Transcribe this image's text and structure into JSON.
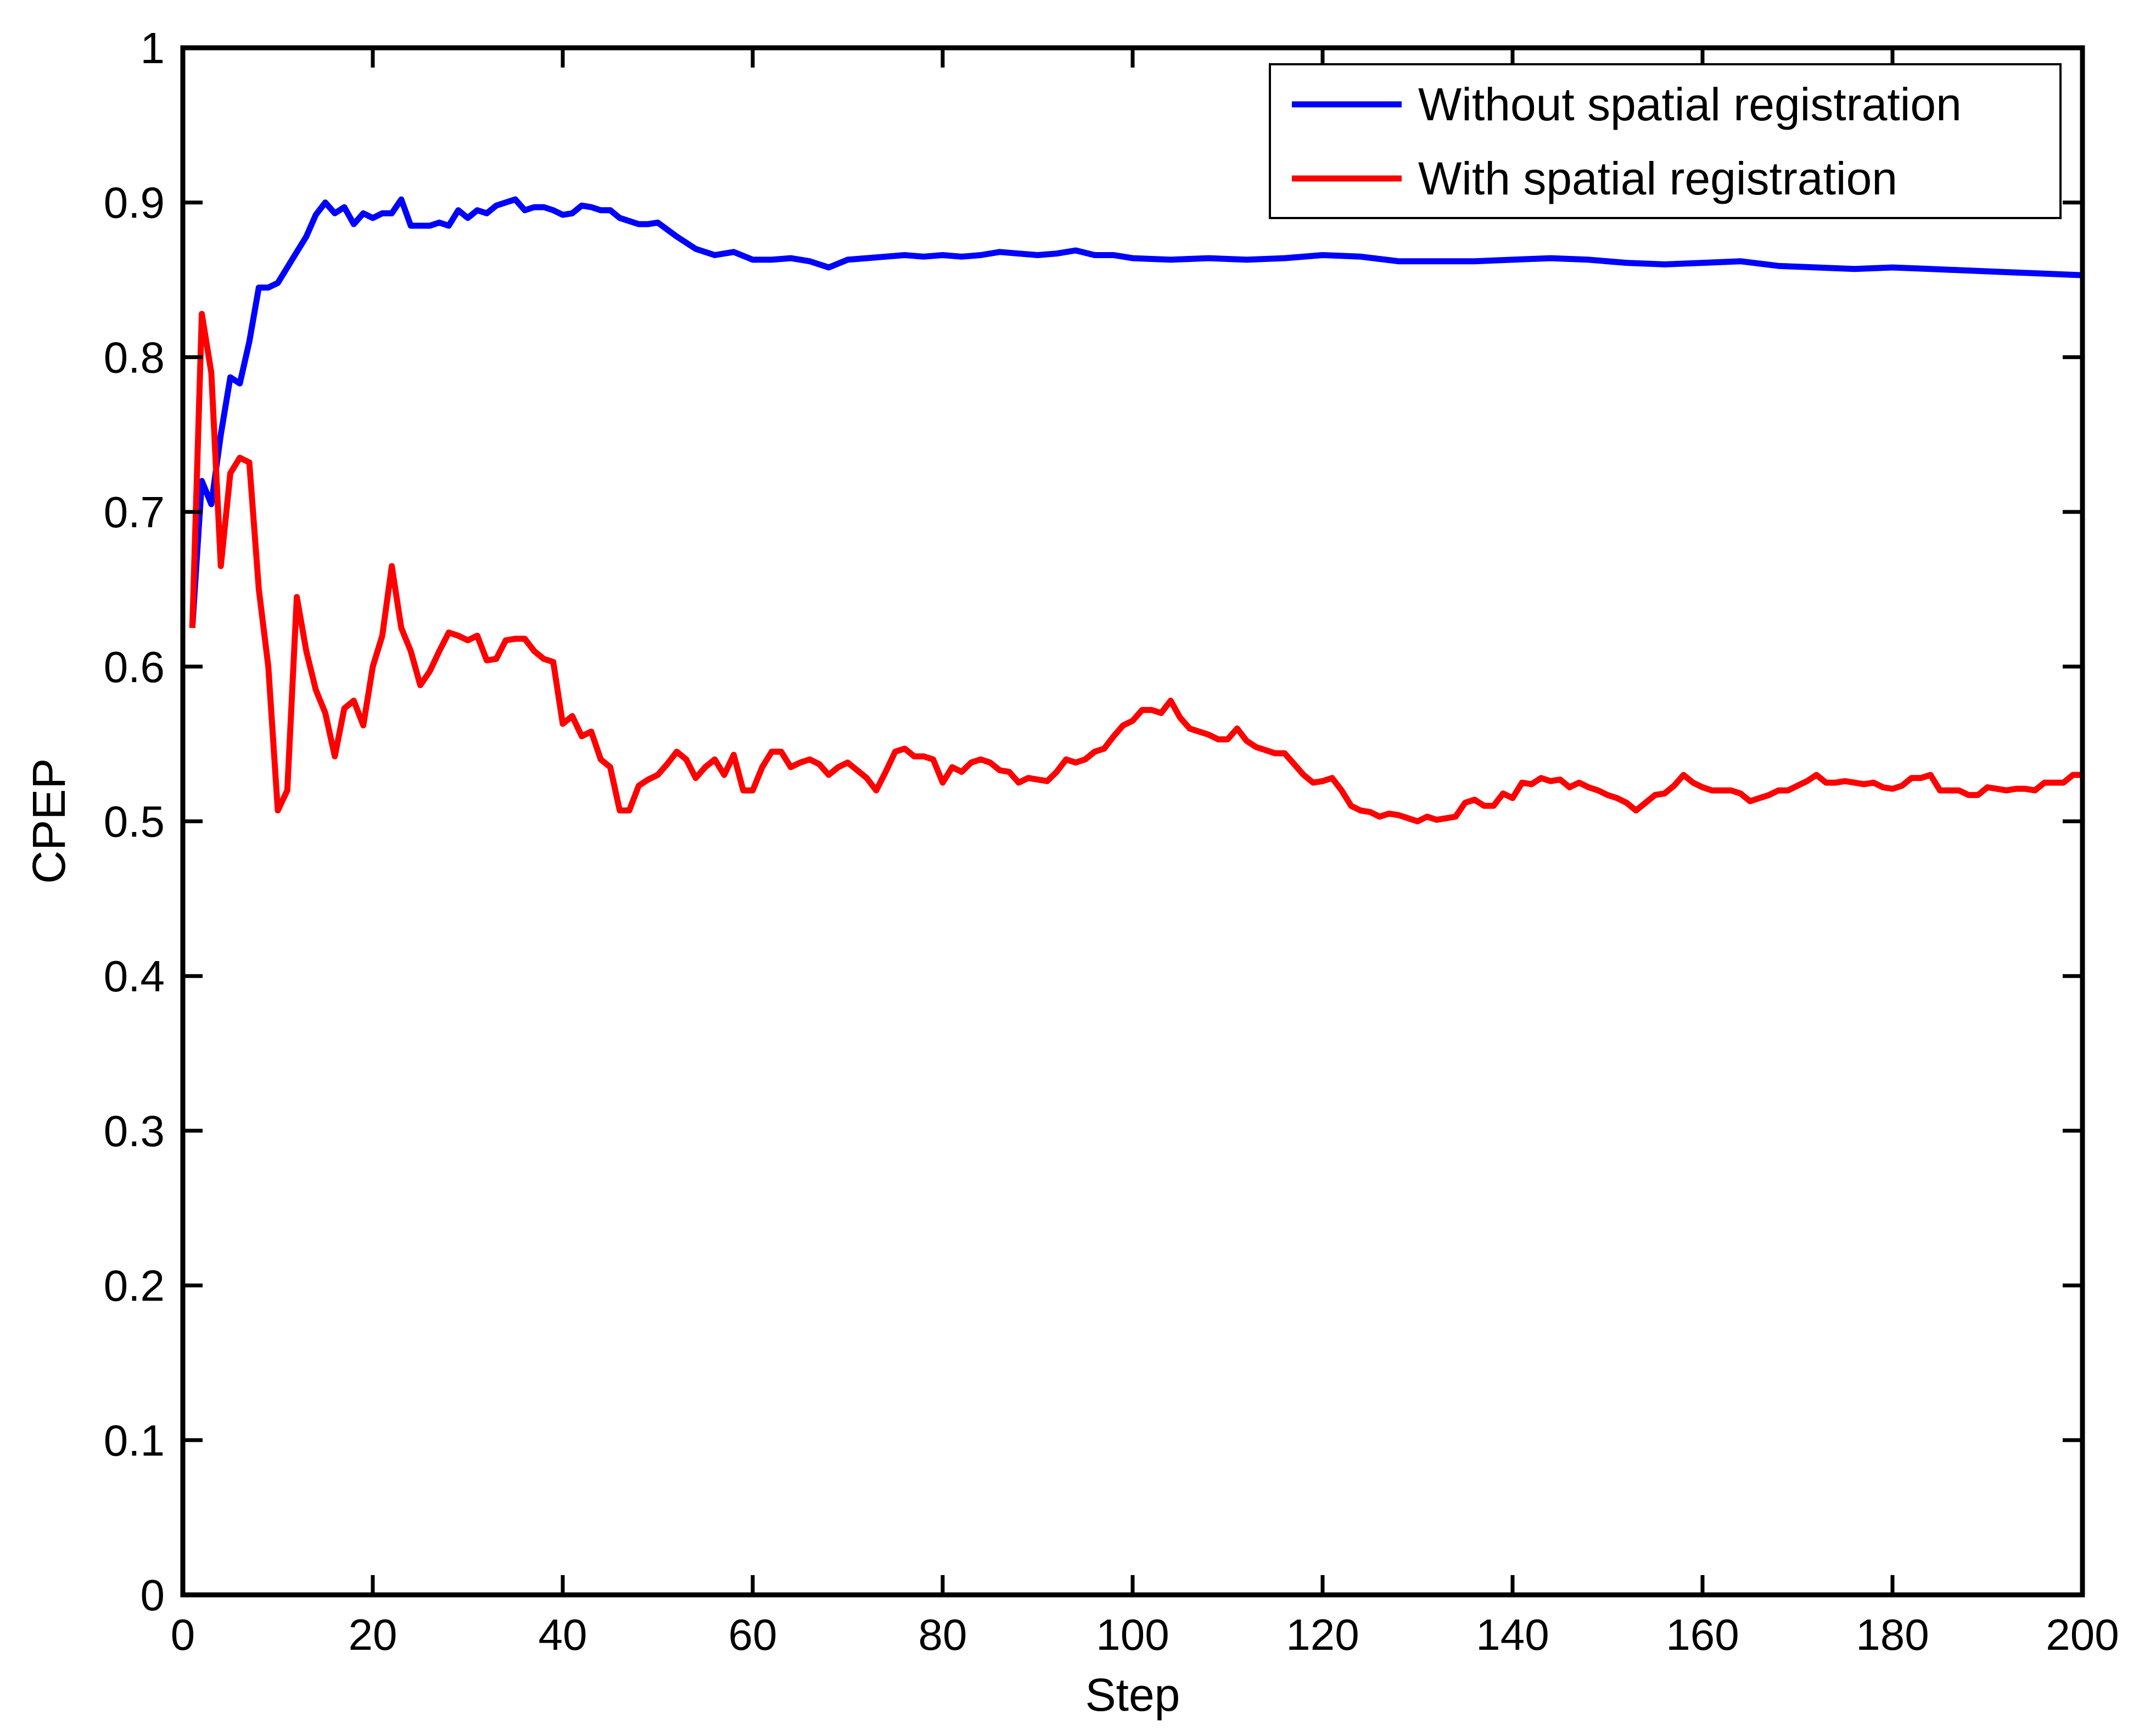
{
  "chart_data": {
    "type": "line",
    "title": "",
    "xlabel": "Step",
    "ylabel": "CPEP",
    "xlim": [
      0,
      200
    ],
    "ylim": [
      0,
      1
    ],
    "xticks": [
      0,
      20,
      40,
      60,
      80,
      100,
      120,
      140,
      160,
      180,
      200
    ],
    "yticks": [
      0,
      0.1,
      0.2,
      0.3,
      0.4,
      0.5,
      0.6,
      0.7,
      0.8,
      0.9,
      1
    ],
    "xtick_labels": [
      "0",
      "20",
      "40",
      "60",
      "80",
      "100",
      "120",
      "140",
      "160",
      "180",
      "200"
    ],
    "ytick_labels": [
      "0",
      "0.1",
      "0.2",
      "0.3",
      "0.4",
      "0.5",
      "0.6",
      "0.7",
      "0.8",
      "0.9",
      "1"
    ],
    "grid": false,
    "legend_position": "top-right",
    "series": [
      {
        "name": "Without spatial registration",
        "color": "#0000ff",
        "x": [
          1,
          2,
          3,
          4,
          5,
          6,
          7,
          8,
          9,
          10,
          11,
          12,
          13,
          14,
          15,
          16,
          17,
          18,
          19,
          20,
          21,
          22,
          23,
          24,
          25,
          26,
          27,
          28,
          29,
          30,
          31,
          32,
          33,
          34,
          35,
          36,
          37,
          38,
          39,
          40,
          41,
          42,
          43,
          44,
          45,
          46,
          47,
          48,
          49,
          50,
          52,
          54,
          56,
          58,
          60,
          62,
          64,
          66,
          68,
          70,
          72,
          74,
          76,
          78,
          80,
          82,
          84,
          86,
          88,
          90,
          92,
          94,
          96,
          98,
          100,
          104,
          108,
          112,
          116,
          120,
          124,
          128,
          132,
          136,
          140,
          144,
          148,
          152,
          156,
          160,
          164,
          168,
          172,
          176,
          180,
          184,
          188,
          192,
          196,
          200
        ],
        "values": [
          0.625,
          0.72,
          0.705,
          0.75,
          0.787,
          0.783,
          0.81,
          0.845,
          0.845,
          0.848,
          0.858,
          0.868,
          0.878,
          0.892,
          0.9,
          0.893,
          0.897,
          0.886,
          0.893,
          0.89,
          0.893,
          0.893,
          0.902,
          0.885,
          0.885,
          0.885,
          0.887,
          0.885,
          0.895,
          0.89,
          0.895,
          0.893,
          0.898,
          0.9,
          0.902,
          0.895,
          0.897,
          0.897,
          0.895,
          0.892,
          0.893,
          0.898,
          0.897,
          0.895,
          0.895,
          0.89,
          0.888,
          0.886,
          0.886,
          0.887,
          0.878,
          0.87,
          0.866,
          0.868,
          0.863,
          0.863,
          0.864,
          0.862,
          0.858,
          0.863,
          0.864,
          0.865,
          0.866,
          0.865,
          0.866,
          0.865,
          0.866,
          0.868,
          0.867,
          0.866,
          0.867,
          0.869,
          0.866,
          0.866,
          0.864,
          0.863,
          0.864,
          0.863,
          0.864,
          0.866,
          0.865,
          0.862,
          0.862,
          0.862,
          0.863,
          0.864,
          0.863,
          0.861,
          0.86,
          0.861,
          0.862,
          0.859,
          0.858,
          0.857,
          0.858,
          0.857,
          0.856,
          0.855,
          0.854,
          0.853
        ]
      },
      {
        "name": "With spatial registration",
        "color": "#ff0000",
        "x": [
          1,
          2,
          3,
          4,
          5,
          6,
          7,
          8,
          9,
          10,
          11,
          12,
          13,
          14,
          15,
          16,
          17,
          18,
          19,
          20,
          21,
          22,
          23,
          24,
          25,
          26,
          27,
          28,
          29,
          30,
          31,
          32,
          33,
          34,
          35,
          36,
          37,
          38,
          39,
          40,
          41,
          42,
          43,
          44,
          45,
          46,
          47,
          48,
          49,
          50,
          51,
          52,
          53,
          54,
          55,
          56,
          57,
          58,
          59,
          60,
          61,
          62,
          63,
          64,
          65,
          66,
          67,
          68,
          69,
          70,
          71,
          72,
          73,
          74,
          75,
          76,
          77,
          78,
          79,
          80,
          81,
          82,
          83,
          84,
          85,
          86,
          87,
          88,
          89,
          90,
          91,
          92,
          93,
          94,
          95,
          96,
          97,
          98,
          99,
          100,
          101,
          102,
          103,
          104,
          105,
          106,
          107,
          108,
          109,
          110,
          111,
          112,
          113,
          114,
          115,
          116,
          117,
          118,
          119,
          120,
          121,
          122,
          123,
          124,
          125,
          126,
          127,
          128,
          129,
          130,
          131,
          132,
          133,
          134,
          135,
          136,
          137,
          138,
          139,
          140,
          141,
          142,
          143,
          144,
          145,
          146,
          147,
          148,
          149,
          150,
          151,
          152,
          153,
          154,
          155,
          156,
          157,
          158,
          159,
          160,
          161,
          162,
          163,
          164,
          165,
          166,
          167,
          168,
          169,
          170,
          171,
          172,
          173,
          174,
          175,
          176,
          177,
          178,
          179,
          180,
          181,
          182,
          183,
          184,
          185,
          186,
          187,
          188,
          189,
          190,
          191,
          192,
          193,
          194,
          195,
          196,
          197,
          198,
          199,
          200
        ],
        "values": [
          0.625,
          0.828,
          0.79,
          0.665,
          0.725,
          0.735,
          0.732,
          0.65,
          0.6,
          0.507,
          0.52,
          0.645,
          0.61,
          0.585,
          0.57,
          0.542,
          0.573,
          0.578,
          0.562,
          0.6,
          0.62,
          0.665,
          0.625,
          0.61,
          0.588,
          0.597,
          0.61,
          0.622,
          0.62,
          0.617,
          0.62,
          0.604,
          0.605,
          0.617,
          0.618,
          0.618,
          0.61,
          0.605,
          0.603,
          0.563,
          0.568,
          0.555,
          0.558,
          0.54,
          0.535,
          0.507,
          0.507,
          0.523,
          0.527,
          0.53,
          0.537,
          0.545,
          0.54,
          0.528,
          0.535,
          0.54,
          0.53,
          0.543,
          0.52,
          0.52,
          0.535,
          0.545,
          0.545,
          0.535,
          0.538,
          0.54,
          0.537,
          0.53,
          0.535,
          0.538,
          0.533,
          0.528,
          0.52,
          0.532,
          0.545,
          0.547,
          0.542,
          0.542,
          0.54,
          0.525,
          0.535,
          0.532,
          0.538,
          0.54,
          0.538,
          0.533,
          0.532,
          0.525,
          0.528,
          0.527,
          0.526,
          0.532,
          0.54,
          0.538,
          0.54,
          0.545,
          0.547,
          0.555,
          0.562,
          0.565,
          0.572,
          0.572,
          0.57,
          0.578,
          0.567,
          0.56,
          0.558,
          0.556,
          0.553,
          0.553,
          0.56,
          0.552,
          0.548,
          0.546,
          0.544,
          0.544,
          0.537,
          0.53,
          0.525,
          0.526,
          0.528,
          0.52,
          0.51,
          0.507,
          0.506,
          0.503,
          0.505,
          0.504,
          0.502,
          0.5,
          0.503,
          0.501,
          0.502,
          0.503,
          0.512,
          0.514,
          0.51,
          0.51,
          0.518,
          0.515,
          0.525,
          0.524,
          0.528,
          0.526,
          0.527,
          0.522,
          0.525,
          0.522,
          0.52,
          0.517,
          0.515,
          0.512,
          0.507,
          0.512,
          0.517,
          0.518,
          0.523,
          0.53,
          0.525,
          0.522,
          0.52,
          0.52,
          0.52,
          0.518,
          0.513,
          0.515,
          0.517,
          0.52,
          0.52,
          0.523,
          0.526,
          0.53,
          0.525,
          0.525,
          0.526,
          0.525,
          0.524,
          0.525,
          0.522,
          0.521,
          0.523,
          0.528,
          0.528,
          0.53,
          0.52,
          0.52,
          0.52,
          0.517,
          0.517,
          0.522,
          0.521,
          0.52,
          0.521,
          0.521,
          0.52,
          0.525,
          0.525,
          0.525,
          0.53,
          0.53
        ]
      }
    ]
  }
}
